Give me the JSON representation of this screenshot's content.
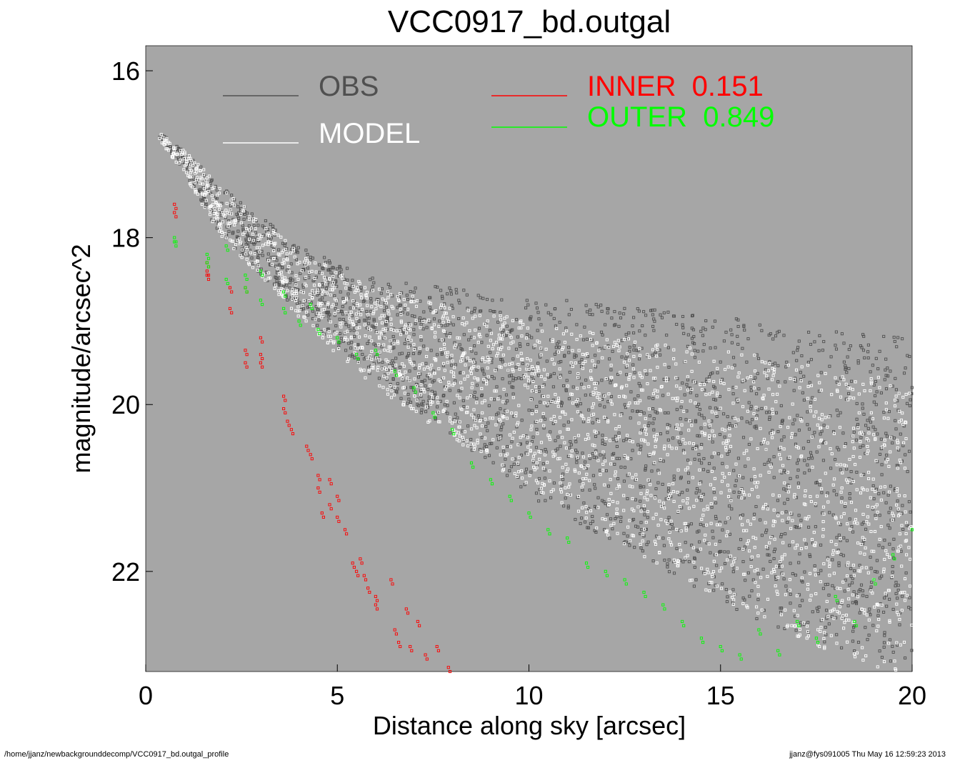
{
  "chart_data": {
    "type": "scatter",
    "title": "VCC0917_bd.outgal",
    "xlabel": "Distance along sky [arcsec]",
    "ylabel": "magnitude/arcsec^2",
    "xlim": [
      0,
      20
    ],
    "ylim": [
      23.2,
      15.7
    ],
    "x_ticks": [
      0,
      5,
      10,
      15,
      20
    ],
    "y_ticks": [
      16,
      18,
      20,
      22
    ],
    "grid": false,
    "legend_placement": "top",
    "background_color": "#a6a6a6",
    "legend": [
      {
        "label": "OBS",
        "color": "#505050"
      },
      {
        "label": "MODEL",
        "color": "#ffffff"
      },
      {
        "label": "INNER  0.151",
        "color": "#ff0000"
      },
      {
        "label": "OUTER  0.849",
        "color": "#00ff00"
      }
    ],
    "series": [
      {
        "name": "OBS",
        "color": "#505050",
        "trend": {
          "x": [
            0.4,
            1,
            2,
            3,
            4,
            5,
            6,
            8,
            10,
            12,
            14,
            16,
            18,
            20
          ],
          "y": [
            16.8,
            17.1,
            17.7,
            18.1,
            18.5,
            18.8,
            19.1,
            19.5,
            19.9,
            20.2,
            20.5,
            20.8,
            21.0,
            21.2
          ]
        },
        "spread": {
          "x": [
            0.4,
            2,
            4,
            6,
            8,
            10,
            13,
            16,
            20
          ],
          "y": [
            0.05,
            0.3,
            0.4,
            0.6,
            0.9,
            1.2,
            1.5,
            1.8,
            2.0
          ]
        }
      },
      {
        "name": "MODEL",
        "color": "#ffffff",
        "trend": {
          "x": [
            0.4,
            1,
            2,
            3,
            4,
            5,
            6,
            8,
            10,
            12,
            14,
            16,
            18,
            20
          ],
          "y": [
            16.8,
            17.1,
            17.7,
            18.15,
            18.55,
            18.9,
            19.2,
            19.6,
            20.0,
            20.35,
            20.7,
            21.0,
            21.3,
            21.5
          ]
        },
        "spread": {
          "x": [
            0.4,
            2,
            4,
            6,
            8,
            10,
            13,
            16,
            20
          ],
          "y": [
            0.05,
            0.3,
            0.4,
            0.6,
            0.8,
            1.0,
            1.3,
            1.6,
            1.8
          ]
        }
      },
      {
        "name": "INNER  0.151",
        "color": "#ff0000",
        "x": [
          0.75,
          0.75,
          1.6,
          1.6,
          1.6,
          2.2,
          2.2,
          2.6,
          2.6,
          2.6,
          3.0,
          3.0,
          3.0,
          3.6,
          3.6,
          3.7,
          3.8,
          4.2,
          4.3,
          4.5,
          4.5,
          4.6,
          4.8,
          4.8,
          5.0,
          5.0,
          5.2,
          5.4,
          5.5,
          5.6,
          5.7,
          5.8,
          6.0,
          6.0,
          6.4,
          6.5,
          6.6,
          6.8,
          6.9,
          7.1,
          7.3,
          7.6,
          7.9
        ],
        "y": [
          17.6,
          17.7,
          18.3,
          18.4,
          18.45,
          18.6,
          18.85,
          18.6,
          19.35,
          19.5,
          19.2,
          19.4,
          19.5,
          19.9,
          20.05,
          20.2,
          20.3,
          20.5,
          20.6,
          20.85,
          21.0,
          21.3,
          20.9,
          21.2,
          21.1,
          21.35,
          21.5,
          21.9,
          22.0,
          21.85,
          22.05,
          22.2,
          22.3,
          22.4,
          22.1,
          22.7,
          22.85,
          22.45,
          22.9,
          22.6,
          23.0,
          22.9,
          23.15
        ]
      },
      {
        "name": "OUTER  0.849",
        "color": "#00ff00",
        "x": [
          0.75,
          0.75,
          1.6,
          1.6,
          2.1,
          2.1,
          2.6,
          2.6,
          3.0,
          3.0,
          3.6,
          3.6,
          4.0,
          4.3,
          4.5,
          5.0,
          5.5,
          6.0,
          6.5,
          7.0,
          7.5,
          8.0,
          8.5,
          9.0,
          9.5,
          10.0,
          10.5,
          11.0,
          11.5,
          12.0,
          12.5,
          13.0,
          13.5,
          14.0,
          14.5,
          15.0,
          15.5,
          16.0,
          16.5,
          17.0,
          17.5,
          18.0,
          18.5,
          19.0,
          19.5,
          20.0
        ],
        "y": [
          18.0,
          18.05,
          18.2,
          18.3,
          18.1,
          18.5,
          18.45,
          18.6,
          18.4,
          18.75,
          18.65,
          18.85,
          19.0,
          18.8,
          19.1,
          19.2,
          19.4,
          19.35,
          19.6,
          19.8,
          20.1,
          20.3,
          20.7,
          20.9,
          21.1,
          21.3,
          21.5,
          21.6,
          21.9,
          22.0,
          22.1,
          22.25,
          22.4,
          22.6,
          22.8,
          22.9,
          23.0,
          22.7,
          22.95,
          22.6,
          22.8,
          22.3,
          22.6,
          22.1,
          21.8,
          21.5
        ]
      }
    ]
  },
  "footer": {
    "path": "/home/jjanz/newbackgrounddecomp/VCC0917_bd.outgal_profile",
    "stamp": "jjanz@fys091005  Thu May 16 12:59:23 2013"
  }
}
